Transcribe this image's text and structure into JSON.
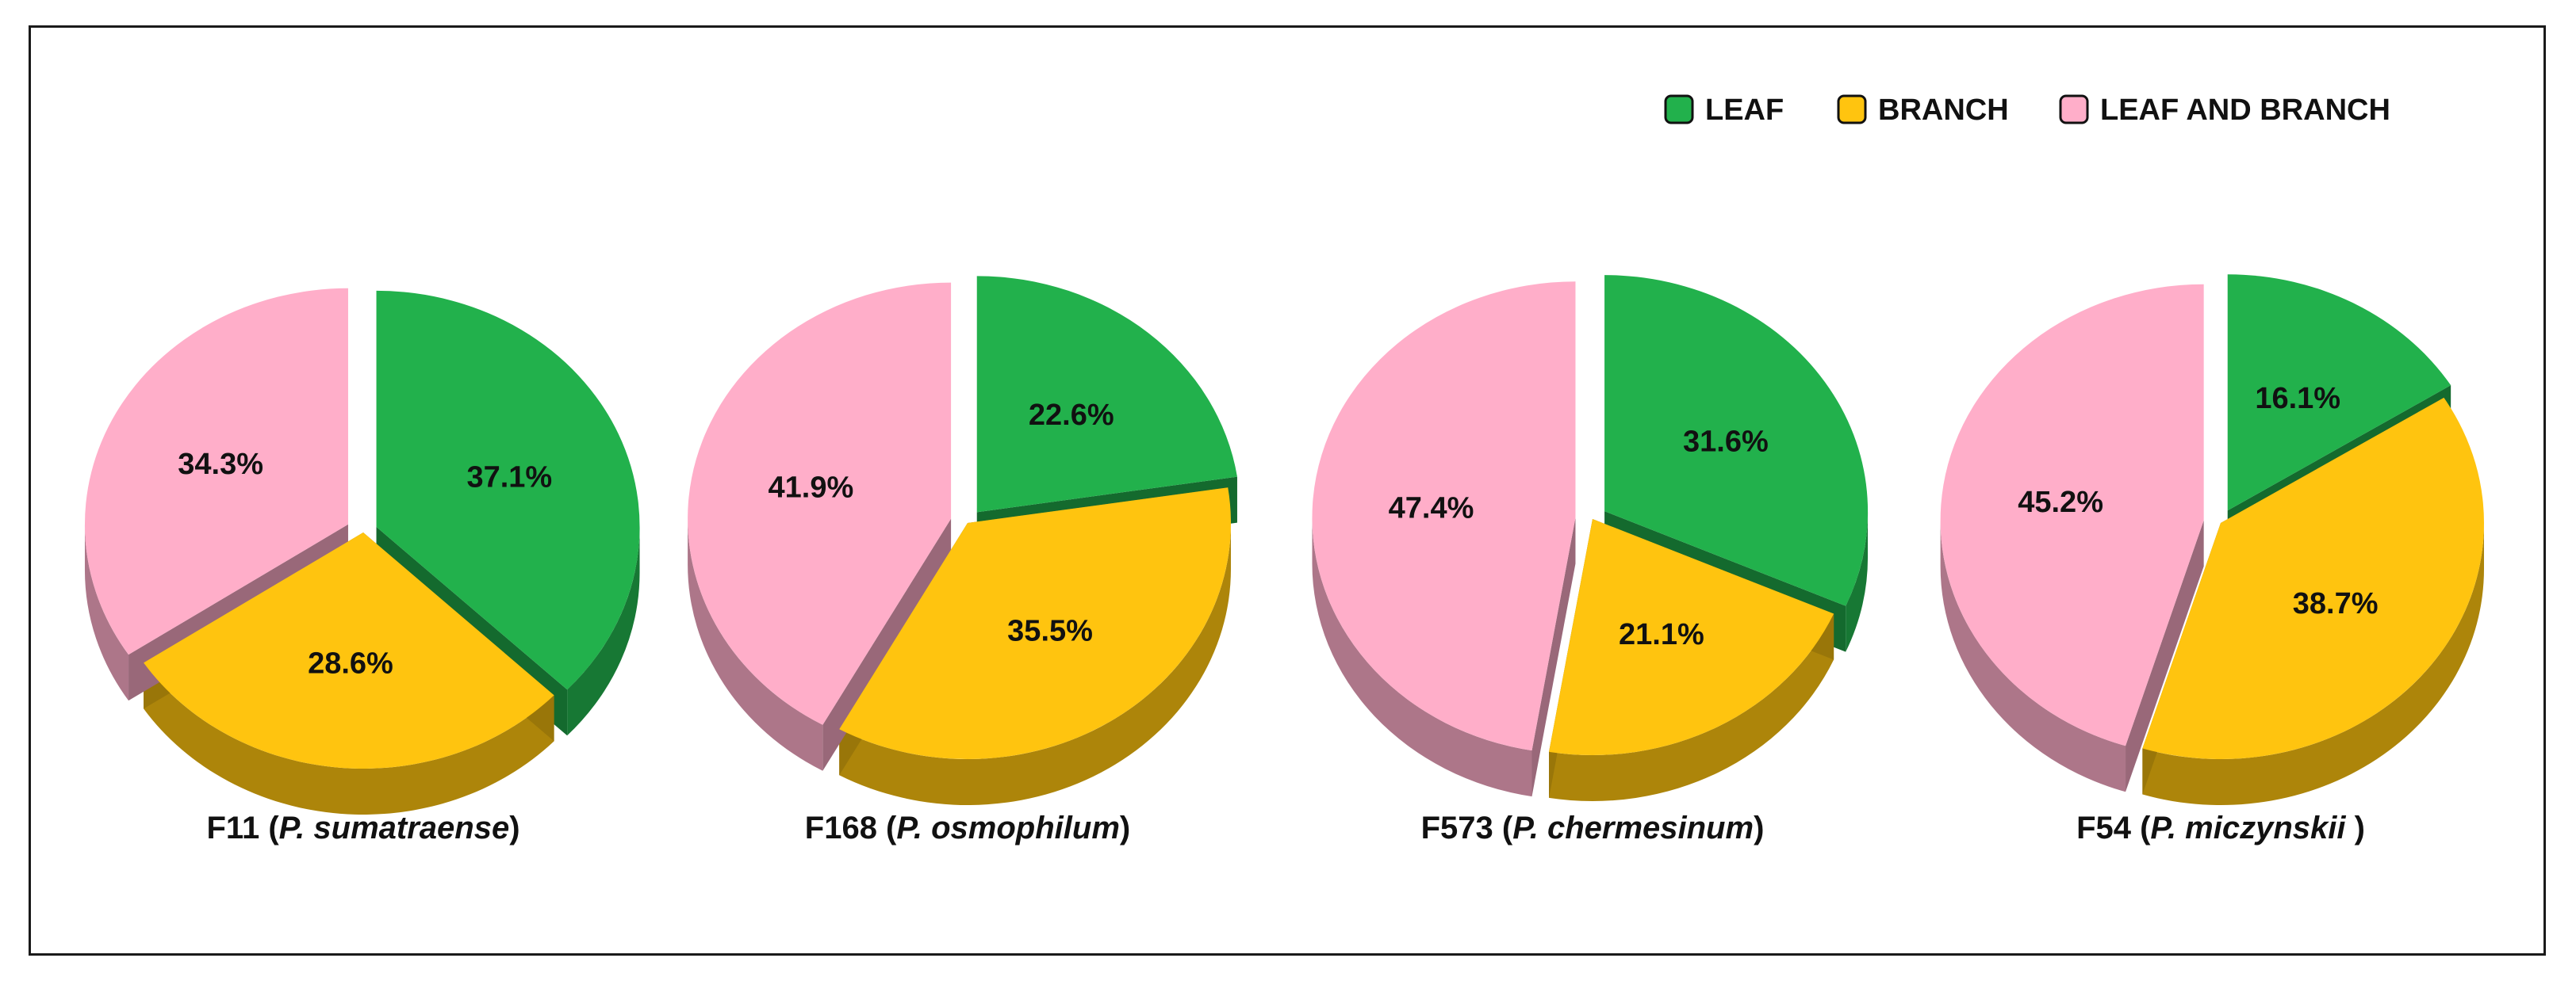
{
  "legend": {
    "position": "top-right",
    "items": [
      {
        "label": "LEAF",
        "color": "#22b14c"
      },
      {
        "label": "BRANCH",
        "color": "#ffc40f"
      },
      {
        "label": "LEAF AND BRANCH",
        "color": "#ffaec9"
      }
    ]
  },
  "chart_data": [
    {
      "type": "pie",
      "title_main": "F11 (",
      "title_species": "P. sumatraense",
      "title_end": ")",
      "slices": [
        {
          "label": "LEAF",
          "value": 37.1,
          "display": "37.1%"
        },
        {
          "label": "BRANCH",
          "value": 28.6,
          "display": "28.6%"
        },
        {
          "label": "LEAF AND BRANCH",
          "value": 34.3,
          "display": "34.3%"
        }
      ]
    },
    {
      "type": "pie",
      "title_main": "F168 (",
      "title_species": "P. osmophilum",
      "title_end": ")",
      "slices": [
        {
          "label": "LEAF",
          "value": 22.6,
          "display": "22.6%"
        },
        {
          "label": "BRANCH",
          "value": 35.5,
          "display": "35.5%"
        },
        {
          "label": "LEAF AND BRANCH",
          "value": 41.9,
          "display": "41.9%"
        }
      ]
    },
    {
      "type": "pie",
      "title_main": "F573 (",
      "title_species": "P. chermesinum",
      "title_end": ")",
      "slices": [
        {
          "label": "LEAF",
          "value": 31.6,
          "display": "31.6%"
        },
        {
          "label": "BRANCH",
          "value": 21.1,
          "display": "21.1%"
        },
        {
          "label": "LEAF AND BRANCH",
          "value": 47.4,
          "display": "47.4%"
        }
      ]
    },
    {
      "type": "pie",
      "title_main": "F54 (",
      "title_species": "P. miczynskii",
      "title_end": " )",
      "slices": [
        {
          "label": "LEAF",
          "value": 16.1,
          "display": "16.1%"
        },
        {
          "label": "BRANCH",
          "value": 38.7,
          "display": "38.7%"
        },
        {
          "label": "LEAF AND BRANCH",
          "value": 45.2,
          "display": "45.2%"
        }
      ]
    }
  ]
}
